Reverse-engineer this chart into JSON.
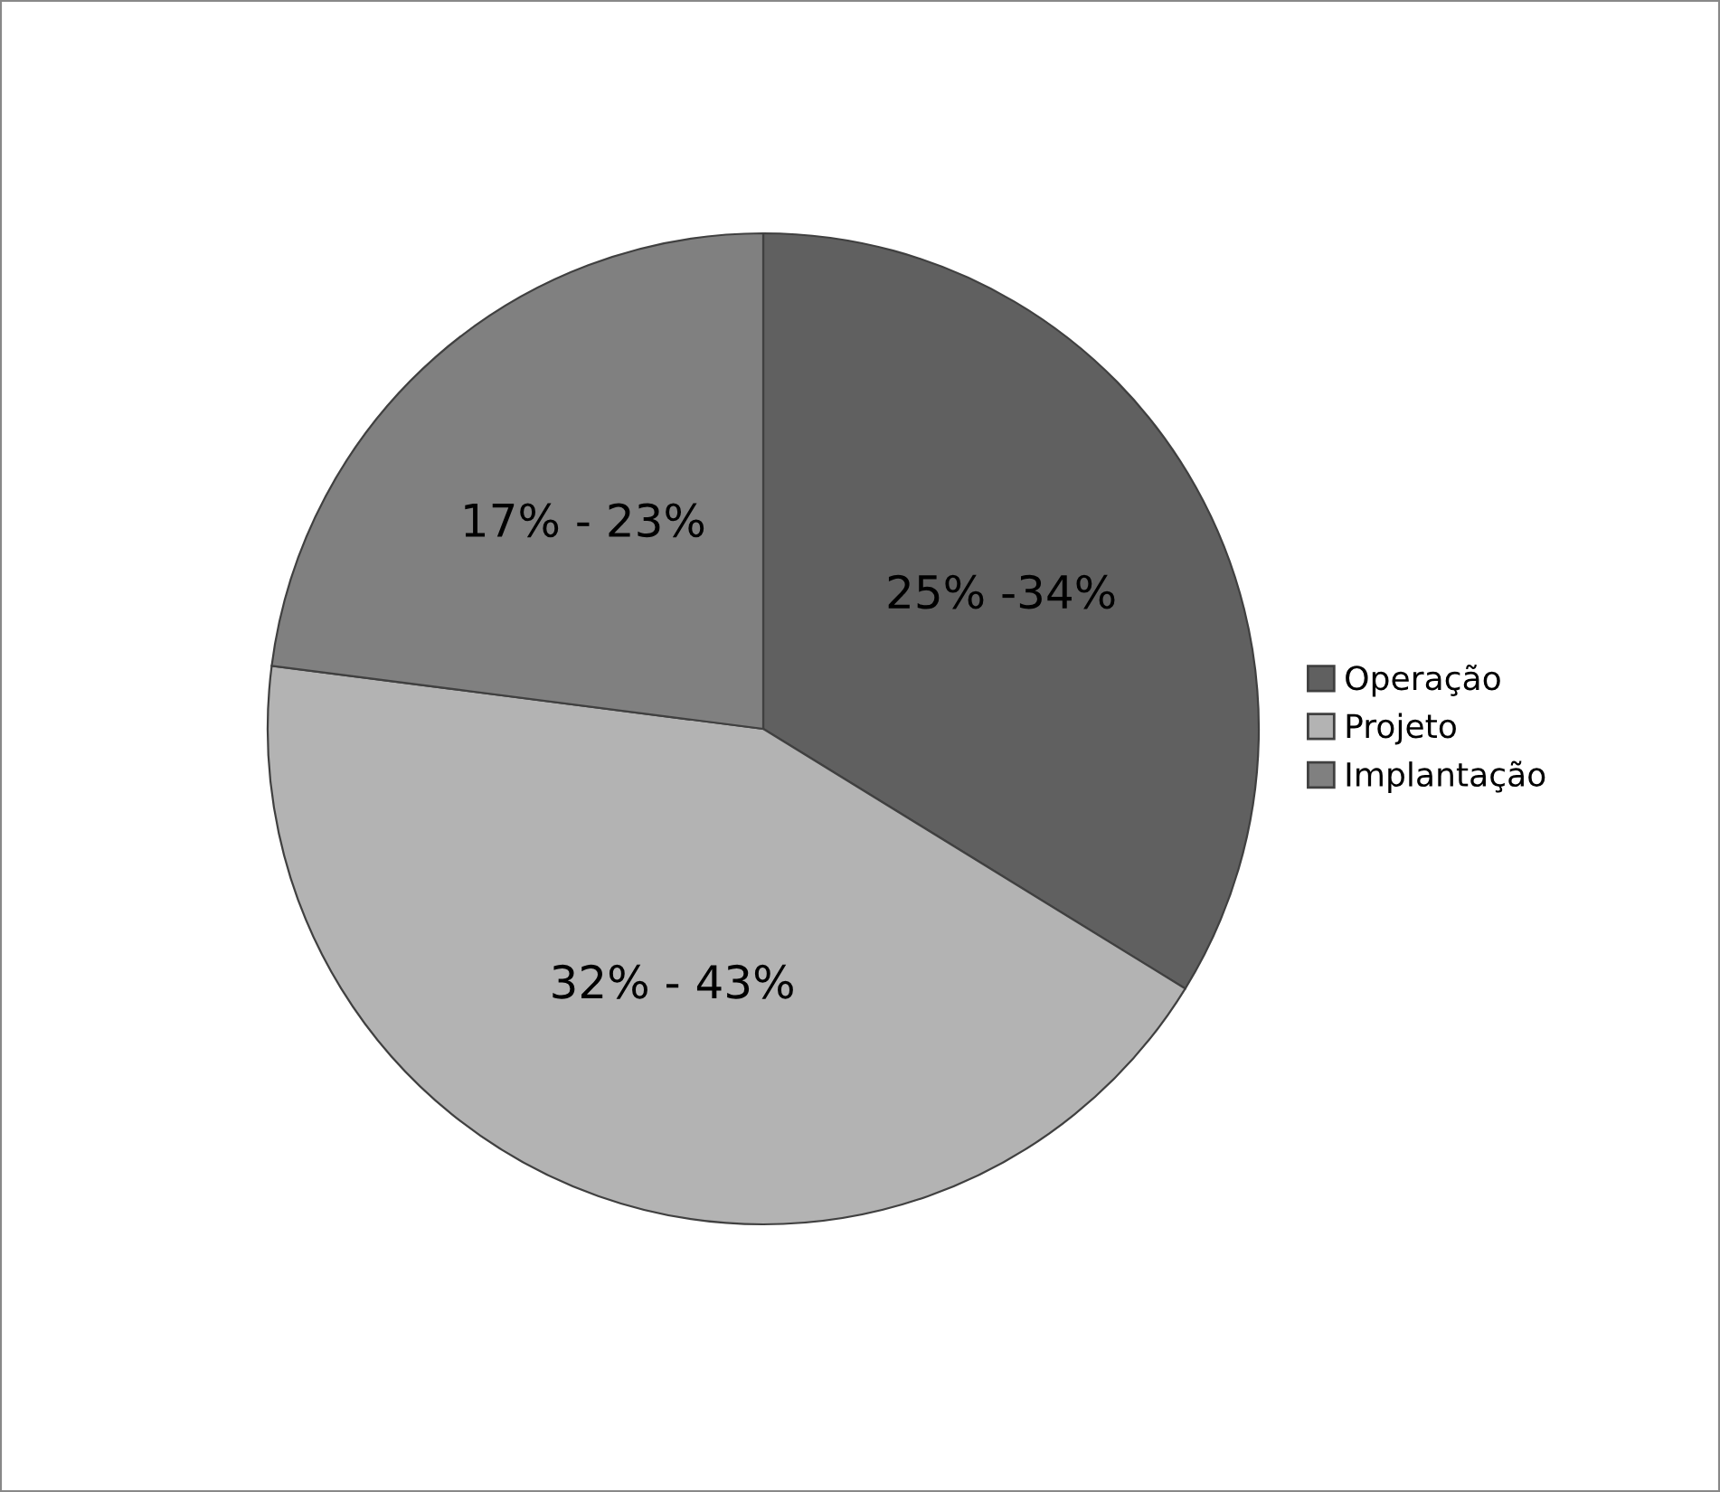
{
  "chart_data": {
    "type": "pie",
    "categories": [
      "Operação",
      "Projeto",
      "Implantação"
    ],
    "values": [
      25,
      32,
      17
    ],
    "colors": [
      "#606060",
      "#b3b3b3",
      "#808080"
    ],
    "value_labels": [
      "25% -34%",
      "32% - 43%",
      "17% - 23%"
    ],
    "legend": "right"
  }
}
